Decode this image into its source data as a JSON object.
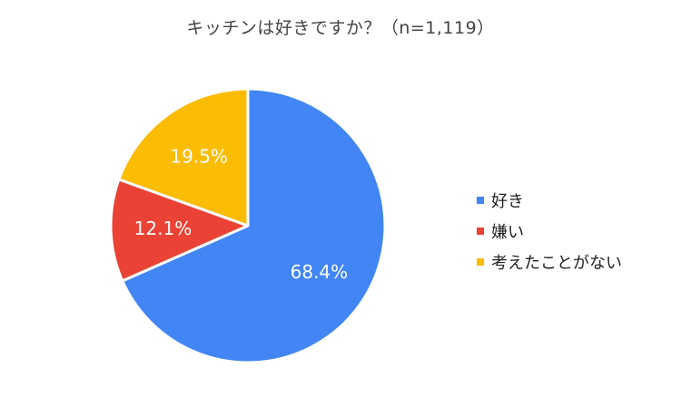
{
  "chart_data": {
    "type": "pie",
    "title": "キッチンは好きですか？（n=1,119）",
    "slices": [
      {
        "label": "好き",
        "value": 68.4,
        "display": "68.4%",
        "color": "#4285F4"
      },
      {
        "label": "嫌い",
        "value": 12.1,
        "display": "12.1%",
        "color": "#EA4335"
      },
      {
        "label": "考えたことがない",
        "value": 19.5,
        "display": "19.5%",
        "color": "#FBBC04"
      }
    ],
    "legend_position": "right",
    "start_angle": "top, clockwise"
  }
}
